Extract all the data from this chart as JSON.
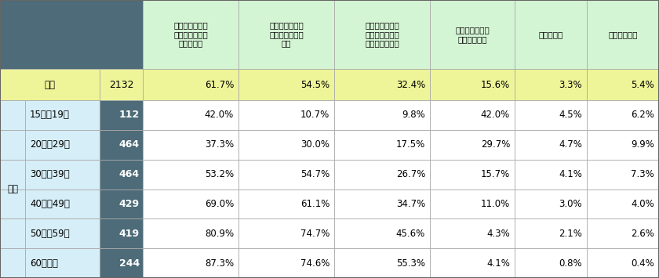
{
  "col_headers": [
    "家族・親戺の結\n婚式に参列した\nことがある",
    "友人の結婚式に\n参列したことが\nある",
    "職場・仕事関係\nの結婚式に参列\nしたことがある",
    "結婚式に参列し\nたことはない",
    "わからない",
    "答えたくない"
  ],
  "rows": [
    {
      "label": "全体",
      "n": "2132",
      "values": [
        "61.7%",
        "54.5%",
        "32.4%",
        "15.6%",
        "3.3%",
        "5.4%"
      ],
      "is_total": true
    },
    {
      "label": "15歳～19歳",
      "n": "112",
      "values": [
        "42.0%",
        "10.7%",
        "9.8%",
        "42.0%",
        "4.5%",
        "6.2%"
      ],
      "is_total": false
    },
    {
      "label": "20歳～29歳",
      "n": "464",
      "values": [
        "37.3%",
        "30.0%",
        "17.5%",
        "29.7%",
        "4.7%",
        "9.9%"
      ],
      "is_total": false
    },
    {
      "label": "30歳～39歳",
      "n": "464",
      "values": [
        "53.2%",
        "54.7%",
        "26.7%",
        "15.7%",
        "4.1%",
        "7.3%"
      ],
      "is_total": false
    },
    {
      "label": "40歳～49歳",
      "n": "429",
      "values": [
        "69.0%",
        "61.1%",
        "34.7%",
        "11.0%",
        "3.0%",
        "4.0%"
      ],
      "is_total": false
    },
    {
      "label": "50歳～59歳",
      "n": "419",
      "values": [
        "80.9%",
        "74.7%",
        "45.6%",
        "4.3%",
        "2.1%",
        "2.6%"
      ],
      "is_total": false
    },
    {
      "label": "60歳以上",
      "n": "244",
      "values": [
        "87.3%",
        "74.6%",
        "55.3%",
        "4.1%",
        "0.8%",
        "0.4%"
      ],
      "is_total": false
    }
  ],
  "age_label": "年齢",
  "C_DARK": "#4d6b78",
  "C_GREEN": "#d4f5d4",
  "C_YELLOW": "#eef598",
  "C_BLUE": "#d6eef7",
  "C_WHITE": "#ffffff",
  "C_GRID": "#aaaaaa",
  "header_fs": 7.5,
  "body_fs": 8.5,
  "n_fs": 9.0,
  "label_fs": 8.5
}
